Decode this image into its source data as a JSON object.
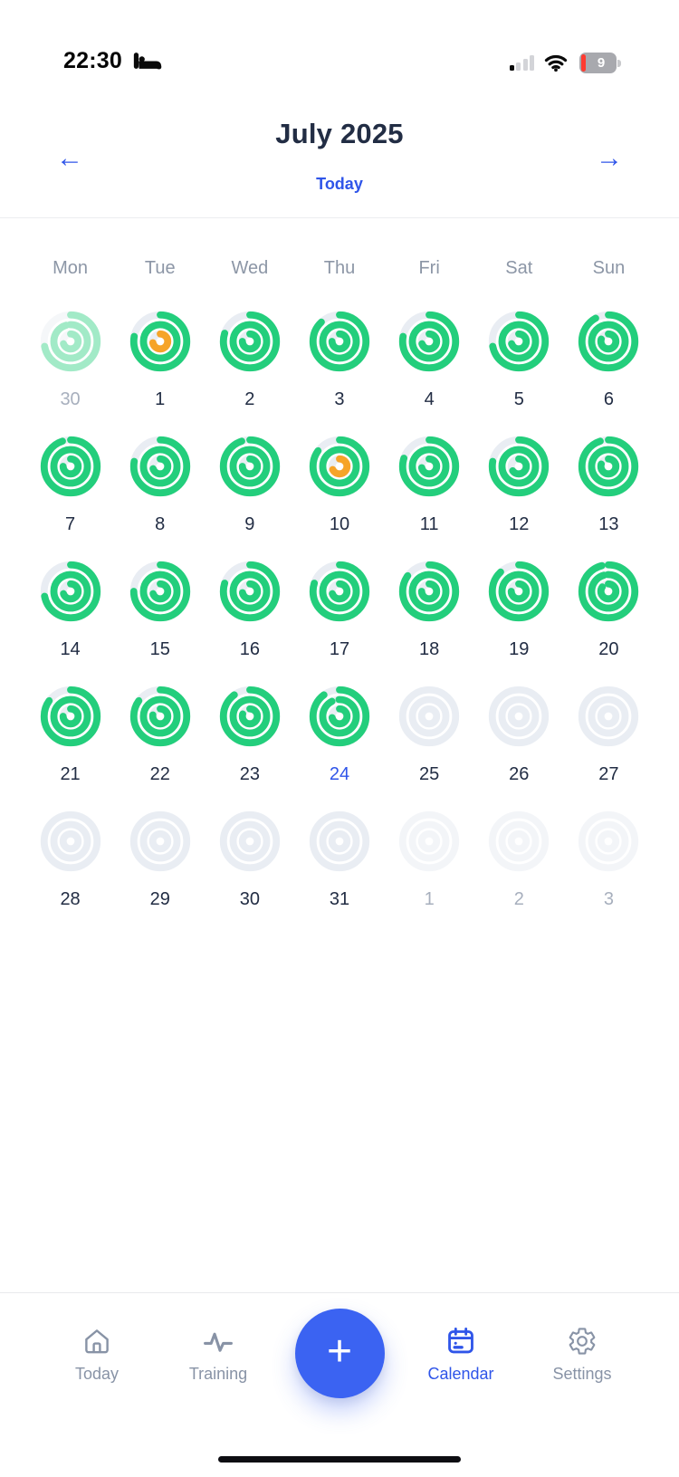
{
  "status_bar": {
    "time": "22:30",
    "battery_percent": "9",
    "icons": [
      "sleep-mode-bed-icon",
      "cellular-signal-icon",
      "wifi-icon",
      "battery-icon"
    ],
    "signal_bars_active": 1,
    "signal_bars_total": 4
  },
  "header": {
    "title": "July 2025",
    "today_label": "Today",
    "prev_icon": "←",
    "next_icon": "→"
  },
  "calendar": {
    "weekdays": [
      "Mon",
      "Tue",
      "Wed",
      "Thu",
      "Fri",
      "Sat",
      "Sun"
    ],
    "colors": {
      "ring_green": "#23ce7c",
      "ring_orange": "#f6a428",
      "ring_track": "#e9edf3",
      "today_blue": "#2f55e9",
      "day_text": "#222d44",
      "muted_text": "#a7afbd"
    },
    "days": [
      {
        "label": "30",
        "num_style": "muted",
        "faded": true,
        "rings": {
          "outer": 0.72,
          "middle": 0.96,
          "inner": 0.7
        },
        "inner_color": "green"
      },
      {
        "label": "1",
        "num_style": "normal",
        "rings": {
          "outer": 0.78,
          "middle": 1,
          "inner": 0.72
        },
        "inner_color": "orange"
      },
      {
        "label": "2",
        "num_style": "normal",
        "rings": {
          "outer": 0.8,
          "middle": 1,
          "inner": 0.75
        },
        "inner_color": "green"
      },
      {
        "label": "3",
        "num_style": "normal",
        "rings": {
          "outer": 0.88,
          "middle": 1,
          "inner": 0.75
        },
        "inner_color": "green"
      },
      {
        "label": "4",
        "num_style": "normal",
        "rings": {
          "outer": 0.78,
          "middle": 1,
          "inner": 0.7
        },
        "inner_color": "green"
      },
      {
        "label": "5",
        "num_style": "normal",
        "rings": {
          "outer": 0.72,
          "middle": 1,
          "inner": 0.7
        },
        "inner_color": "green"
      },
      {
        "label": "6",
        "num_style": "normal",
        "rings": {
          "outer": 0.92,
          "middle": 1,
          "inner": 0.8
        },
        "inner_color": "green"
      },
      {
        "label": "7",
        "num_style": "normal",
        "rings": {
          "outer": 0.95,
          "middle": 1,
          "inner": 0.75
        },
        "inner_color": "green"
      },
      {
        "label": "8",
        "num_style": "normal",
        "rings": {
          "outer": 0.78,
          "middle": 1,
          "inner": 0.7
        },
        "inner_color": "green"
      },
      {
        "label": "9",
        "num_style": "normal",
        "rings": {
          "outer": 0.95,
          "middle": 1,
          "inner": 0.75
        },
        "inner_color": "green"
      },
      {
        "label": "10",
        "num_style": "normal",
        "rings": {
          "outer": 0.85,
          "middle": 1,
          "inner": 0.68
        },
        "inner_color": "orange"
      },
      {
        "label": "11",
        "num_style": "normal",
        "rings": {
          "outer": 0.8,
          "middle": 1,
          "inner": 0.72
        },
        "inner_color": "green"
      },
      {
        "label": "12",
        "num_style": "normal",
        "rings": {
          "outer": 0.78,
          "middle": 1,
          "inner": 0.65
        },
        "inner_color": "green"
      },
      {
        "label": "13",
        "num_style": "normal",
        "rings": {
          "outer": 0.95,
          "middle": 1,
          "inner": 0.8
        },
        "inner_color": "green"
      },
      {
        "label": "14",
        "num_style": "normal",
        "rings": {
          "outer": 0.72,
          "middle": 1,
          "inner": 0.7
        },
        "inner_color": "green"
      },
      {
        "label": "15",
        "num_style": "normal",
        "rings": {
          "outer": 0.75,
          "middle": 1,
          "inner": 0.7
        },
        "inner_color": "green"
      },
      {
        "label": "16",
        "num_style": "normal",
        "rings": {
          "outer": 0.8,
          "middle": 1,
          "inner": 0.72
        },
        "inner_color": "green"
      },
      {
        "label": "17",
        "num_style": "normal",
        "rings": {
          "outer": 0.8,
          "middle": 1,
          "inner": 0.7
        },
        "inner_color": "green"
      },
      {
        "label": "18",
        "num_style": "normal",
        "rings": {
          "outer": 0.85,
          "middle": 1,
          "inner": 0.75
        },
        "inner_color": "green"
      },
      {
        "label": "19",
        "num_style": "normal",
        "rings": {
          "outer": 0.88,
          "middle": 1,
          "inner": 0.75
        },
        "inner_color": "green"
      },
      {
        "label": "20",
        "num_style": "normal",
        "rings": {
          "outer": 0.96,
          "middle": 0.96,
          "inner": 0.85
        },
        "inner_color": "green"
      },
      {
        "label": "21",
        "num_style": "normal",
        "rings": {
          "outer": 0.85,
          "middle": 1,
          "inner": 0.75
        },
        "inner_color": "green"
      },
      {
        "label": "22",
        "num_style": "normal",
        "rings": {
          "outer": 0.85,
          "middle": 1,
          "inner": 0.78
        },
        "inner_color": "green"
      },
      {
        "label": "23",
        "num_style": "normal",
        "rings": {
          "outer": 0.9,
          "middle": 1,
          "inner": 0.8
        },
        "inner_color": "green"
      },
      {
        "label": "24",
        "num_style": "today",
        "rings": {
          "outer": 0.9,
          "middle": 0.93,
          "inner": 0.72
        },
        "inner_color": "green"
      },
      {
        "label": "25",
        "num_style": "normal",
        "rings": null
      },
      {
        "label": "26",
        "num_style": "normal",
        "rings": null
      },
      {
        "label": "27",
        "num_style": "normal",
        "rings": null
      },
      {
        "label": "28",
        "num_style": "normal",
        "rings": null
      },
      {
        "label": "29",
        "num_style": "normal",
        "rings": null
      },
      {
        "label": "30",
        "num_style": "normal",
        "rings": null
      },
      {
        "label": "31",
        "num_style": "normal",
        "rings": null
      },
      {
        "label": "1",
        "num_style": "muted",
        "faded": true,
        "rings": null
      },
      {
        "label": "2",
        "num_style": "muted",
        "faded": true,
        "rings": null
      },
      {
        "label": "3",
        "num_style": "muted",
        "faded": true,
        "rings": null
      }
    ]
  },
  "nav": {
    "items": [
      {
        "label": "Today",
        "icon": "home-icon",
        "active": false
      },
      {
        "label": "Training",
        "icon": "pulse-icon",
        "active": false
      },
      {
        "label": "Calendar",
        "icon": "calendar-icon",
        "active": true
      },
      {
        "label": "Settings",
        "icon": "gear-icon",
        "active": false
      }
    ],
    "add_label": "+"
  }
}
